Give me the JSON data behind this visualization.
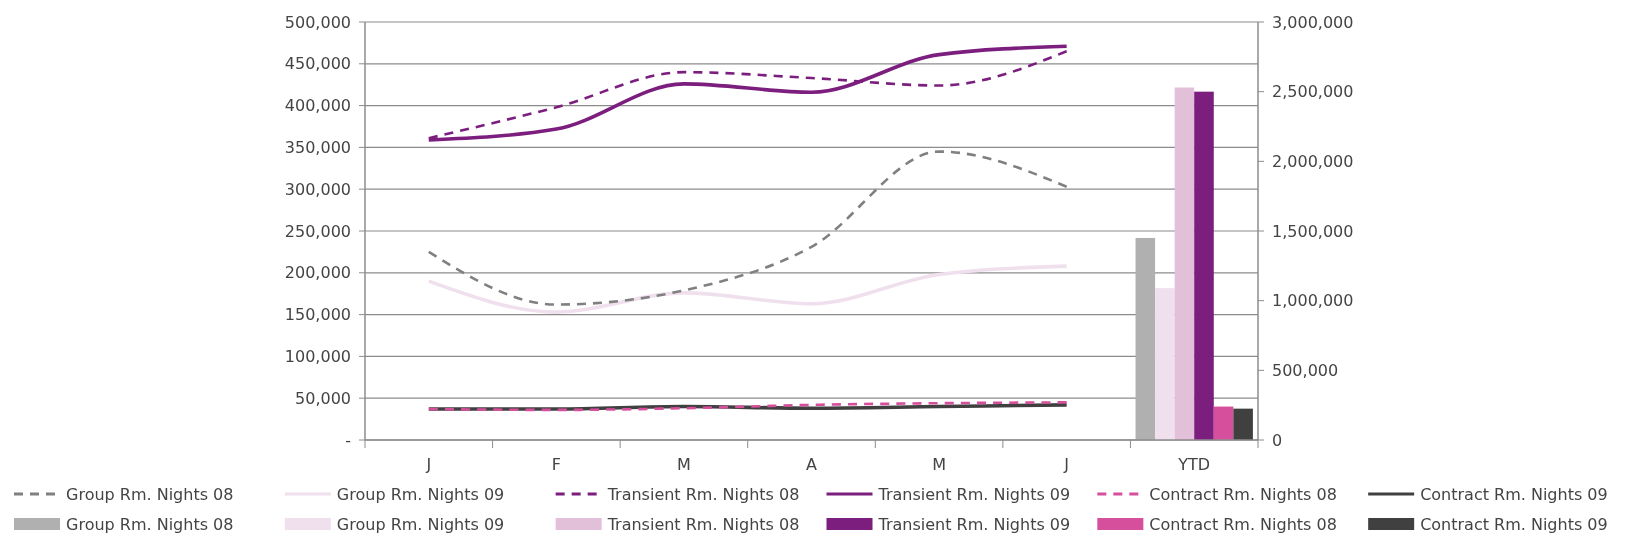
{
  "chart_data": {
    "type": "line",
    "categories": [
      "J",
      "F",
      "M",
      "A",
      "M",
      "J",
      "YTD"
    ],
    "ylim": [
      0,
      500000
    ],
    "yticks": [
      {
        "value": 0,
        "label": "-"
      },
      {
        "value": 50000,
        "label": "50,000"
      },
      {
        "value": 100000,
        "label": "100,000"
      },
      {
        "value": 150000,
        "label": "150,000"
      },
      {
        "value": 200000,
        "label": "200,000"
      },
      {
        "value": 250000,
        "label": "250,000"
      },
      {
        "value": 300000,
        "label": "300,000"
      },
      {
        "value": 350000,
        "label": "350,000"
      },
      {
        "value": 400000,
        "label": "400,000"
      },
      {
        "value": 450000,
        "label": "450,000"
      },
      {
        "value": 500000,
        "label": "500,000"
      }
    ],
    "y2lim": [
      0,
      3000000
    ],
    "y2ticks": [
      {
        "value": 0,
        "label": "0"
      },
      {
        "value": 500000,
        "label": "500,000"
      },
      {
        "value": 1000000,
        "label": "1,000,000"
      },
      {
        "value": 1500000,
        "label": "1,500,000"
      },
      {
        "value": 2000000,
        "label": "2,000,000"
      },
      {
        "value": 2500000,
        "label": "2,500,000"
      },
      {
        "value": 3000000,
        "label": "3,000,000"
      }
    ],
    "grid": "y",
    "legend": "bottom",
    "series": [
      {
        "name": "Group Rm. Nights 08",
        "line_style": "dashed",
        "color": "#808080",
        "values": [
          225000,
          162000,
          179000,
          231000,
          345000,
          303000,
          null
        ]
      },
      {
        "name": "Group Rm. Nights 09",
        "line_style": "solid",
        "color": "#f0e0ee",
        "values": [
          190000,
          153000,
          176000,
          163000,
          198000,
          208000,
          null
        ]
      },
      {
        "name": "Transient Rm. Nights 08",
        "line_style": "dashed",
        "color": "#7b1e7e",
        "values": [
          361000,
          398000,
          440000,
          433000,
          424000,
          465000,
          null
        ]
      },
      {
        "name": "Transient Rm. Nights 09",
        "line_style": "solid",
        "color": "#7b1e7e",
        "values": [
          359000,
          372000,
          426000,
          416000,
          461000,
          471000,
          null
        ]
      },
      {
        "name": "Contract Rm. Nights 08",
        "line_style": "dashed",
        "color": "#d64f9c",
        "values": [
          37000,
          36000,
          38000,
          42000,
          44000,
          45000,
          null
        ]
      },
      {
        "name": "Contract Rm. Nights 09",
        "line_style": "solid",
        "color": "#404040",
        "values": [
          37000,
          37000,
          40000,
          38000,
          40000,
          42000,
          null
        ]
      },
      {
        "name": "Group Rm. Nights 08",
        "type": "bar",
        "axis": "y2",
        "color": "#b0b0b0",
        "values": [
          null,
          null,
          null,
          null,
          null,
          null,
          1450000
        ]
      },
      {
        "name": "Group Rm. Nights 09",
        "type": "bar",
        "axis": "y2",
        "color": "#f0e0ee",
        "values": [
          null,
          null,
          null,
          null,
          null,
          null,
          1090000
        ]
      },
      {
        "name": "Transient Rm. Nights 08",
        "type": "bar",
        "axis": "y2",
        "color": "#e2c0da",
        "values": [
          null,
          null,
          null,
          null,
          null,
          null,
          2530000
        ]
      },
      {
        "name": "Transient Rm. Nights 09",
        "type": "bar",
        "axis": "y2",
        "color": "#7b1e7e",
        "values": [
          null,
          null,
          null,
          null,
          null,
          null,
          2500000
        ]
      },
      {
        "name": "Contract Rm. Nights 08",
        "type": "bar",
        "axis": "y2",
        "color": "#d64f9c",
        "values": [
          null,
          null,
          null,
          null,
          null,
          null,
          240000
        ]
      },
      {
        "name": "Contract Rm. Nights 09",
        "type": "bar",
        "axis": "y2",
        "color": "#404040",
        "values": [
          null,
          null,
          null,
          null,
          null,
          null,
          225000
        ]
      }
    ]
  }
}
